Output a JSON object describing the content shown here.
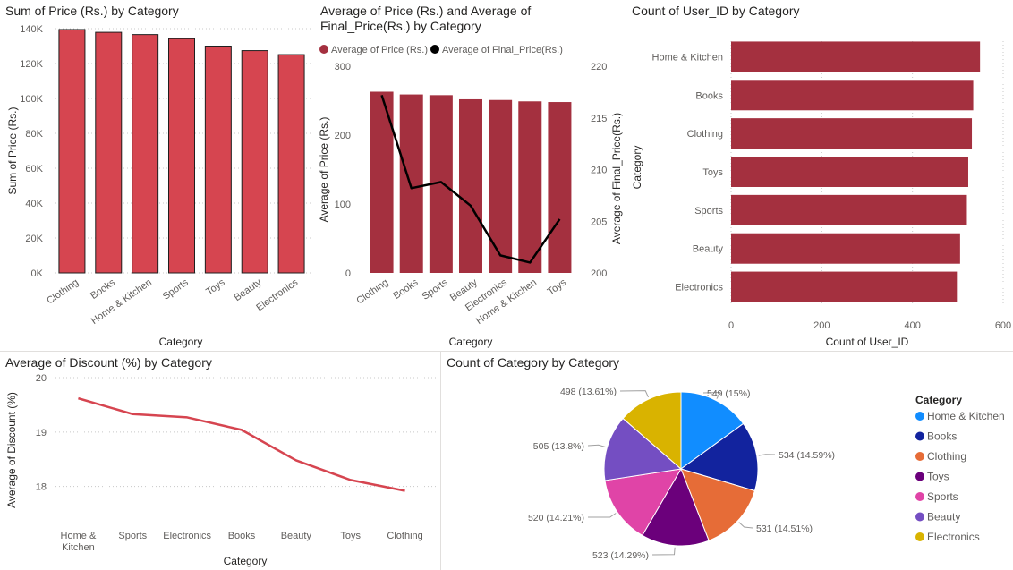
{
  "colors": {
    "bar_red": "#D64550",
    "bar_maroon": "#A4303F",
    "line_black": "#000000",
    "line_red": "#D64550",
    "grid": "#c8c8c8",
    "axis_text": "#605E5C"
  },
  "charts": {
    "price_sum": {
      "title": "Sum of Price (Rs.) by Category",
      "ylabel": "Sum of Price (Rs.)",
      "xlabel": "Category",
      "yticks": [
        "0K",
        "20K",
        "40K",
        "60K",
        "80K",
        "100K",
        "120K",
        "140K"
      ]
    },
    "avg_combo": {
      "title": "Average of Price (Rs.) and Average of Final_Price(Rs.) by Category",
      "legend": [
        "Average of Price (Rs.)",
        "Average of Final_Price(Rs.)"
      ],
      "ylabel_left": "Average of Price (Rs.)",
      "ylabel_right": "Average of Final_Price(Rs.)",
      "xlabel": "Category",
      "yticks_left": [
        "0",
        "100",
        "200",
        "300"
      ],
      "yticks_right": [
        "200",
        "205",
        "210",
        "215",
        "220"
      ]
    },
    "user_count": {
      "title": "Count of User_ID by Category",
      "ylabel": "Category",
      "xlabel": "Count of User_ID",
      "xticks": [
        "0",
        "200",
        "400",
        "600"
      ]
    },
    "discount": {
      "title": "Average of Discount (%) by Category",
      "ylabel": "Average of Discount (%)",
      "xlabel": "Category",
      "yticks": [
        "18",
        "19",
        "20"
      ]
    },
    "category_pie": {
      "title": "Count of Category by Category",
      "legend_title": "Category"
    }
  },
  "chart_data": [
    {
      "type": "bar",
      "title": "Sum of Price (Rs.) by Category",
      "categories": [
        "Clothing",
        "Books",
        "Home & Kitchen",
        "Sports",
        "Toys",
        "Beauty",
        "Electronics"
      ],
      "values": [
        139500,
        137900,
        136600,
        134200,
        130000,
        127400,
        125100
      ],
      "xlabel": "Category",
      "ylabel": "Sum of Price (Rs.)",
      "ylim": [
        0,
        140000
      ],
      "grid": true
    },
    {
      "type": "bar",
      "title": "Average of Price (Rs.) and Average of Final_Price(Rs.) by Category",
      "categories": [
        "Clothing",
        "Books",
        "Sports",
        "Beauty",
        "Electronics",
        "Home & Kitchen",
        "Toys"
      ],
      "series": [
        {
          "name": "Average of Price (Rs.)",
          "type": "bar",
          "axis": "left",
          "values": [
            263,
            259,
            258,
            252,
            251,
            249,
            248
          ]
        },
        {
          "name": "Average of Final_Price(Rs.)",
          "type": "line",
          "axis": "right",
          "values": [
            217.2,
            208.2,
            208.8,
            206.5,
            201.7,
            201.0,
            205.2
          ]
        }
      ],
      "xlabel": "Category",
      "ylabel": "Average of Price (Rs.)",
      "ylabel_right": "Average of Final_Price(Rs.)",
      "ylim": [
        0,
        300
      ],
      "ylim_right": [
        200,
        220
      ],
      "legend": "top-left"
    },
    {
      "type": "bar",
      "orientation": "horizontal",
      "title": "Count of User_ID by Category",
      "categories": [
        "Home & Kitchen",
        "Books",
        "Clothing",
        "Toys",
        "Sports",
        "Beauty",
        "Electronics"
      ],
      "values": [
        549,
        534,
        531,
        523,
        520,
        505,
        498
      ],
      "xlabel": "Count of User_ID",
      "ylabel": "Category",
      "xlim": [
        0,
        600
      ]
    },
    {
      "type": "line",
      "title": "Average of Discount (%) by Category",
      "categories": [
        "Home & Kitchen",
        "Sports",
        "Electronics",
        "Books",
        "Beauty",
        "Toys",
        "Clothing"
      ],
      "values": [
        19.62,
        19.33,
        19.27,
        19.04,
        18.48,
        18.12,
        17.92
      ],
      "xlabel": "Category",
      "ylabel": "Average of Discount (%)",
      "ylim": [
        17.6,
        20
      ],
      "grid": true
    },
    {
      "type": "pie",
      "title": "Count of Category by Category",
      "categories": [
        "Home & Kitchen",
        "Books",
        "Clothing",
        "Toys",
        "Sports",
        "Beauty",
        "Electronics"
      ],
      "values": [
        549,
        534,
        531,
        523,
        520,
        505,
        498
      ],
      "labels": [
        "549 (15%)",
        "534 (14.59%)",
        "531 (14.51%)",
        "523 (14.29%)",
        "520 (14.21%)",
        "505 (13.8%)",
        "498 (13.61%)"
      ],
      "colors": [
        "#118DFF",
        "#12239E",
        "#E66C37",
        "#6B007B",
        "#E044A7",
        "#744EC2",
        "#D9B300"
      ],
      "legend": "right"
    }
  ]
}
